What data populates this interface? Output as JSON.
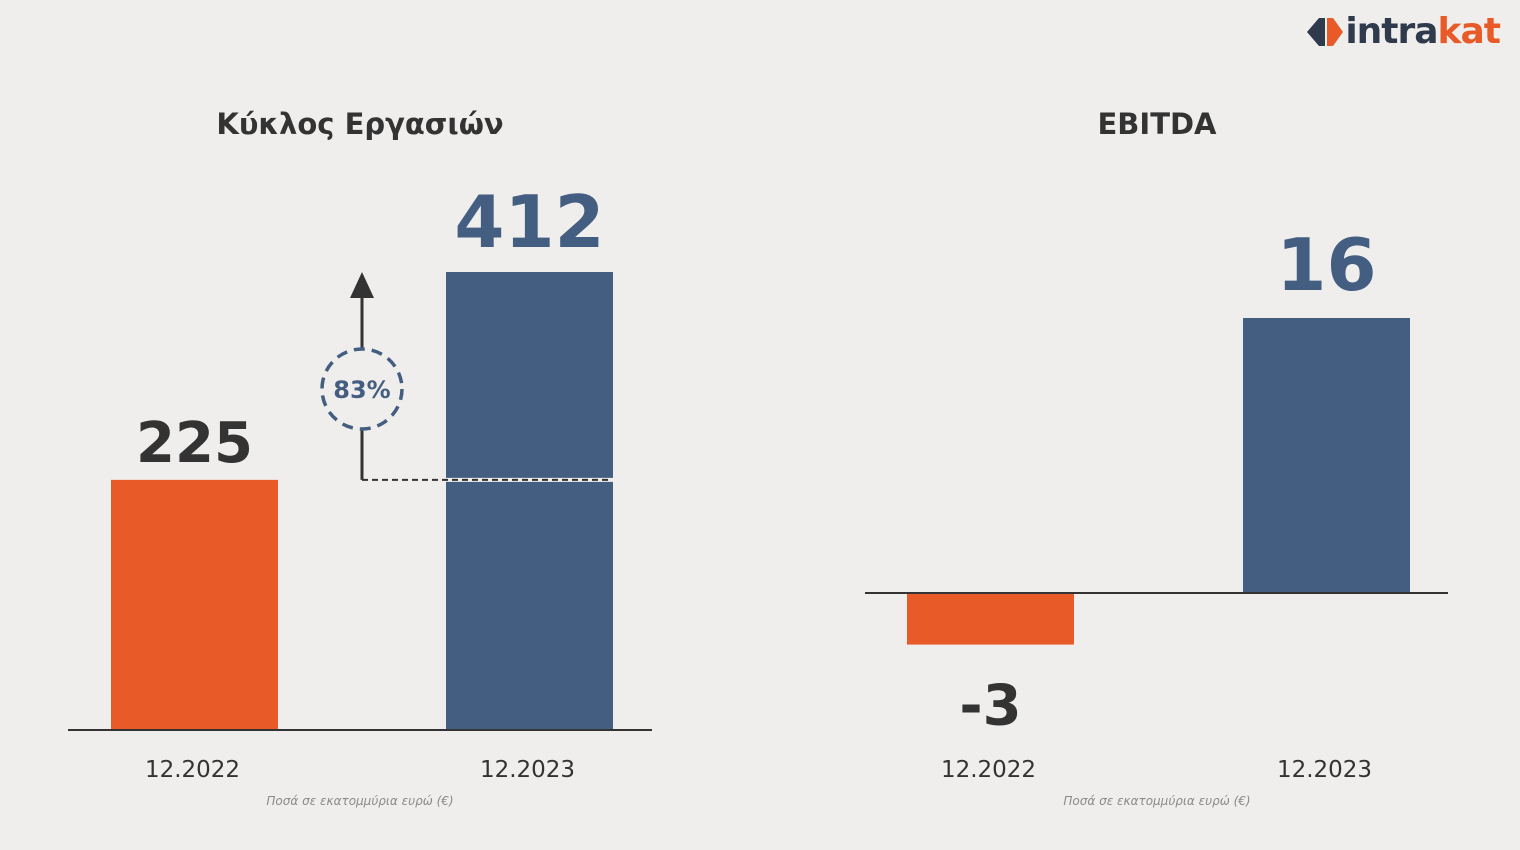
{
  "brand": {
    "name_part1": "intra",
    "name_part2": "kat",
    "mark_icon": "intrakat-logo-mark",
    "colors": {
      "dark": "#2f3a4d",
      "accent": "#e85a28"
    }
  },
  "colors": {
    "orange": "#e85a28",
    "blue": "#445e81",
    "text_dark": "#333333",
    "text_blue": "#445e81"
  },
  "chart_data": [
    {
      "type": "bar",
      "title": "Κύκλος Εργασιών",
      "categories": [
        "12.2022",
        "12.2023"
      ],
      "values": [
        225,
        412
      ],
      "value_labels": [
        "225",
        "412"
      ],
      "annotation": "83%",
      "ylim": [
        0,
        450
      ],
      "footnote": "Ποσά σε εκατομμύρια ευρώ (€)"
    },
    {
      "type": "bar",
      "title": "EBITDA",
      "categories": [
        "12.2022",
        "12.2023"
      ],
      "values": [
        -3,
        16
      ],
      "value_labels": [
        "-3",
        "16"
      ],
      "ylim": [
        -3,
        16
      ],
      "footnote": "Ποσά σε εκατομμύρια ευρώ (€)"
    }
  ]
}
